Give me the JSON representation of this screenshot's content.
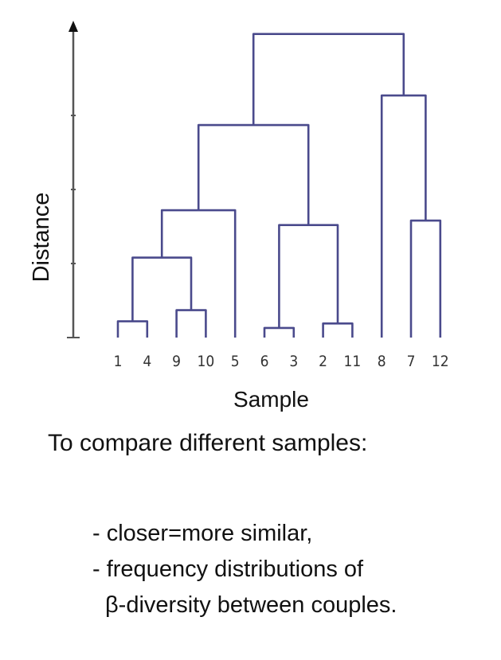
{
  "chart_data": {
    "type": "dendrogram",
    "title": "",
    "xlabel": "Sample",
    "ylabel": "Distance",
    "ylim": [
      0,
      4.3
    ],
    "yticks": [
      0,
      1,
      2,
      3
    ],
    "grid": false,
    "leaves": [
      "1",
      "4",
      "9",
      "10",
      "5",
      "6",
      "3",
      "2",
      "11",
      "8",
      "7",
      "12"
    ],
    "line_color": "#4a4a8c",
    "axis_color": "#555555",
    "merges": [
      {
        "id": "A",
        "left": "1",
        "right": "4",
        "height": 0.22
      },
      {
        "id": "B",
        "left": "9",
        "right": "10",
        "height": 0.37
      },
      {
        "id": "C",
        "left": "6",
        "right": "3",
        "height": 0.13
      },
      {
        "id": "D",
        "left": "2",
        "right": "11",
        "height": 0.19
      },
      {
        "id": "E",
        "left": "A",
        "right": "B",
        "height": 1.08
      },
      {
        "id": "F",
        "left": "E",
        "right": "5",
        "height": 1.72
      },
      {
        "id": "G",
        "left": "C",
        "right": "D",
        "height": 1.52
      },
      {
        "id": "H",
        "left": "F",
        "right": "G",
        "height": 2.87
      },
      {
        "id": "I",
        "left": "7",
        "right": "12",
        "height": 1.58
      },
      {
        "id": "J",
        "left": "8",
        "right": "I",
        "height": 3.27
      },
      {
        "id": "K",
        "left": "H",
        "right": "J",
        "height": 4.1
      }
    ]
  },
  "text": {
    "caption": "To compare different samples:",
    "bullets": [
      "- closer=more similar,",
      "- frequency distributions of",
      "  β-diversity between couples."
    ]
  }
}
